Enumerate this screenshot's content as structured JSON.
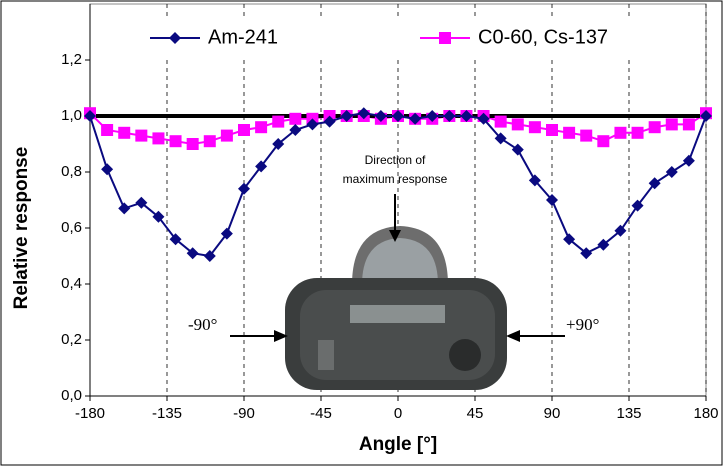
{
  "chart_data": {
    "type": "line",
    "xlabel": "Angle [°]",
    "ylabel": "Relative response",
    "x": [
      -180,
      -170,
      -160,
      -150,
      -140,
      -130,
      -120,
      -110,
      -100,
      -90,
      -80,
      -70,
      -60,
      -50,
      -40,
      -30,
      -20,
      -10,
      0,
      10,
      20,
      30,
      40,
      50,
      60,
      70,
      80,
      90,
      100,
      110,
      120,
      130,
      140,
      150,
      160,
      170,
      180
    ],
    "series": [
      {
        "name": "Am-241",
        "color": "#0a0a80",
        "marker": "diamond",
        "values": [
          1.0,
          0.81,
          0.67,
          0.69,
          0.64,
          0.56,
          0.51,
          0.5,
          0.58,
          0.74,
          0.82,
          0.9,
          0.95,
          0.97,
          0.98,
          1.0,
          1.01,
          1.0,
          1.0,
          0.99,
          1.0,
          1.0,
          1.0,
          0.99,
          0.92,
          0.88,
          0.77,
          0.7,
          0.56,
          0.51,
          0.54,
          0.59,
          0.68,
          0.76,
          0.8,
          0.84,
          1.0
        ]
      },
      {
        "name": "C0-60, Cs-137",
        "color": "#ff00ff",
        "marker": "square",
        "values": [
          1.01,
          0.95,
          0.94,
          0.93,
          0.92,
          0.91,
          0.9,
          0.91,
          0.93,
          0.95,
          0.96,
          0.98,
          0.99,
          0.99,
          1.0,
          1.0,
          1.0,
          0.99,
          1.0,
          0.99,
          0.99,
          1.0,
          1.0,
          1.0,
          0.98,
          0.97,
          0.96,
          0.95,
          0.94,
          0.93,
          0.91,
          0.94,
          0.94,
          0.96,
          0.97,
          0.97,
          1.01
        ]
      }
    ],
    "reference_line": {
      "value": 1.0,
      "color": "#000000"
    },
    "xlim": [
      -180,
      180
    ],
    "xticks": [
      -180,
      -135,
      -90,
      -45,
      0,
      45,
      90,
      135,
      180
    ],
    "ylim": [
      0,
      1.4
    ],
    "yticks": [
      {
        "value": 0,
        "label": "0,0"
      },
      {
        "value": 0.2,
        "label": "0,2"
      },
      {
        "value": 0.4,
        "label": "0,4"
      },
      {
        "value": 0.6,
        "label": "0,6"
      },
      {
        "value": 0.8,
        "label": "0,8"
      },
      {
        "value": 1.0,
        "label": "1,0"
      },
      {
        "value": 1.2,
        "label": "1,2"
      }
    ],
    "grid": "x",
    "legend": "top",
    "annotations": [
      "Direction of",
      "maximum response",
      "-90°",
      "+90°"
    ]
  }
}
